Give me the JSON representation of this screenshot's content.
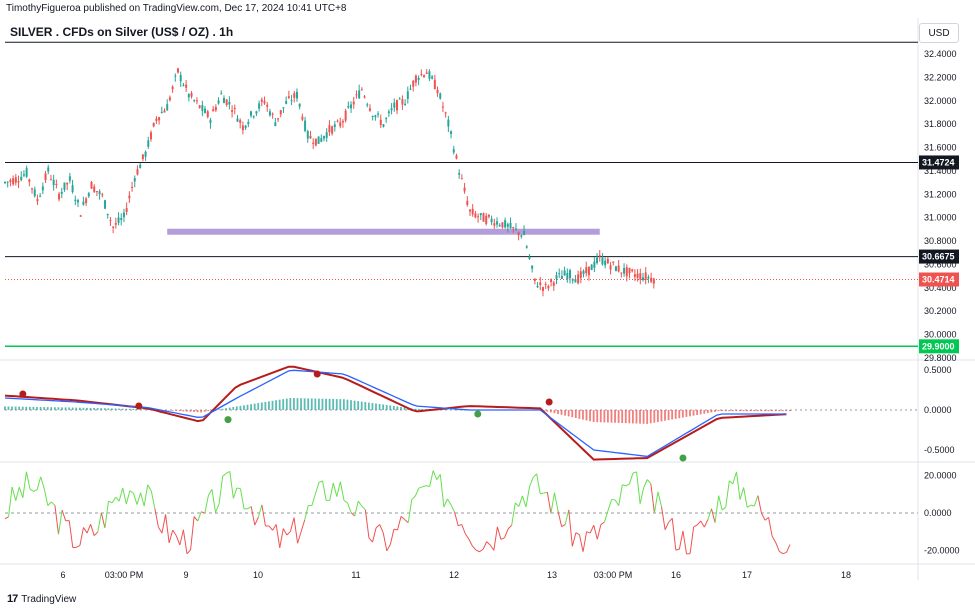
{
  "header": {
    "published": "TimothyFigueroa published on TradingView.com, Dec 17, 2024 10:41 UTC+8",
    "title": "SILVER . CFDs on Silver (US$ / OZ) . 1h",
    "currency": "USD"
  },
  "footer": {
    "brand": "TradingView",
    "logo": "17"
  },
  "colors": {
    "up": "#26a69a",
    "down": "#ef5350",
    "zone": "#b39ddb",
    "support": "#00c853",
    "macd_fast": "#2962ff",
    "macd_signal_up": "#43a047",
    "macd_signal_down": "#b71c1c",
    "osc_up": "#66e04d",
    "osc_down": "#ef5350",
    "price_line": "#ef5350"
  },
  "chart_data": [
    {
      "type": "candlestick",
      "title": "SILVER . CFDs on Silver (US$ / OZ) . 1h",
      "ylim": [
        29.8,
        32.4
      ],
      "y_ticks": [
        "32.4000",
        "32.2000",
        "32.0000",
        "31.8000",
        "31.6000",
        "31.4000",
        "31.2000",
        "31.0000",
        "30.8000",
        "30.6000",
        "30.4000",
        "30.2000",
        "30.0000",
        "29.8000"
      ],
      "x_ticks": [
        "6",
        "03:00 PM",
        "9",
        "10",
        "11",
        "12",
        "13",
        "03:00 PM",
        "16",
        "17",
        "18"
      ],
      "close_path": [
        [
          0,
          31.3
        ],
        [
          6,
          31.33
        ],
        [
          12,
          31.38
        ],
        [
          18,
          31.15
        ],
        [
          24,
          31.4
        ],
        [
          30,
          31.2
        ],
        [
          36,
          31.32
        ],
        [
          42,
          31.05
        ],
        [
          48,
          31.28
        ],
        [
          54,
          31.18
        ],
        [
          60,
          30.92
        ],
        [
          66,
          31.0
        ],
        [
          72,
          31.35
        ],
        [
          78,
          31.55
        ],
        [
          84,
          31.85
        ],
        [
          90,
          31.95
        ],
        [
          96,
          32.25
        ],
        [
          102,
          32.05
        ],
        [
          108,
          31.95
        ],
        [
          114,
          31.85
        ],
        [
          120,
          32.05
        ],
        [
          126,
          31.95
        ],
        [
          132,
          31.78
        ],
        [
          138,
          31.9
        ],
        [
          144,
          32.0
        ],
        [
          150,
          31.82
        ],
        [
          156,
          31.98
        ],
        [
          162,
          32.05
        ],
        [
          168,
          31.7
        ],
        [
          174,
          31.65
        ],
        [
          180,
          31.75
        ],
        [
          186,
          31.8
        ],
        [
          192,
          31.95
        ],
        [
          198,
          32.1
        ],
        [
          204,
          31.9
        ],
        [
          210,
          31.8
        ],
        [
          216,
          31.95
        ],
        [
          222,
          32.0
        ],
        [
          228,
          32.2
        ],
        [
          234,
          32.25
        ],
        [
          240,
          32.1
        ],
        [
          246,
          31.8
        ],
        [
          252,
          31.4
        ],
        [
          258,
          31.05
        ],
        [
          264,
          31.0
        ],
        [
          270,
          30.98
        ],
        [
          276,
          30.95
        ],
        [
          282,
          30.9
        ],
        [
          288,
          30.85
        ],
        [
          294,
          30.45
        ],
        [
          300,
          30.4
        ],
        [
          306,
          30.48
        ],
        [
          312,
          30.52
        ],
        [
          318,
          30.48
        ],
        [
          324,
          30.55
        ],
        [
          330,
          30.65
        ],
        [
          336,
          30.6
        ],
        [
          342,
          30.55
        ],
        [
          348,
          30.52
        ],
        [
          354,
          30.5
        ],
        [
          360,
          30.48
        ]
      ],
      "resistance_levels": [
        {
          "value": 32.5,
          "label": ""
        },
        {
          "value": 31.4724,
          "label": "31.4724"
        },
        {
          "value": 30.6675,
          "label": "30.6675"
        }
      ],
      "support_level": {
        "value": 29.9,
        "label": "29.9000"
      },
      "zone": {
        "value": 30.88,
        "from_index": 90,
        "to_index": 330
      },
      "last_price": {
        "value": 30.4714,
        "label": "30.4714"
      }
    },
    {
      "type": "line",
      "name": "macd",
      "ylim": [
        -0.6,
        0.6
      ],
      "y_ticks": [
        "0.5000",
        "0.0000",
        "-0.5000"
      ],
      "fast": [
        [
          0,
          0.15
        ],
        [
          40,
          0.1
        ],
        [
          80,
          0.03
        ],
        [
          110,
          -0.1
        ],
        [
          130,
          0.15
        ],
        [
          160,
          0.5
        ],
        [
          190,
          0.45
        ],
        [
          230,
          0.05
        ],
        [
          260,
          0.0
        ],
        [
          300,
          0.0
        ],
        [
          330,
          -0.5
        ],
        [
          360,
          -0.58
        ],
        [
          400,
          -0.05
        ],
        [
          440,
          -0.05
        ]
      ],
      "signal": [
        [
          0,
          0.18
        ],
        [
          40,
          0.12
        ],
        [
          80,
          0.02
        ],
        [
          110,
          -0.15
        ],
        [
          130,
          0.3
        ],
        [
          160,
          0.55
        ],
        [
          190,
          0.4
        ],
        [
          230,
          -0.02
        ],
        [
          260,
          0.05
        ],
        [
          300,
          0.02
        ],
        [
          330,
          -0.62
        ],
        [
          360,
          -0.6
        ],
        [
          400,
          -0.1
        ],
        [
          440,
          -0.05
        ]
      ],
      "markers": [
        [
          10,
          0.2,
          "down"
        ],
        [
          75,
          0.05,
          "down"
        ],
        [
          125,
          -0.12,
          "up"
        ],
        [
          175,
          0.45,
          "down"
        ],
        [
          265,
          -0.05,
          "up"
        ],
        [
          305,
          0.1,
          "down"
        ],
        [
          380,
          -0.6,
          "up"
        ]
      ]
    },
    {
      "type": "line",
      "name": "oscillator",
      "ylim": [
        -25,
        25
      ],
      "y_ticks": [
        "20.0000",
        "0.0000",
        "-20.0000"
      ]
    }
  ],
  "x_axis_labels": [
    "6",
    "03:00 PM",
    "9",
    "10",
    "11",
    "12",
    "13",
    "03:00 PM",
    "16",
    "17",
    "18"
  ]
}
